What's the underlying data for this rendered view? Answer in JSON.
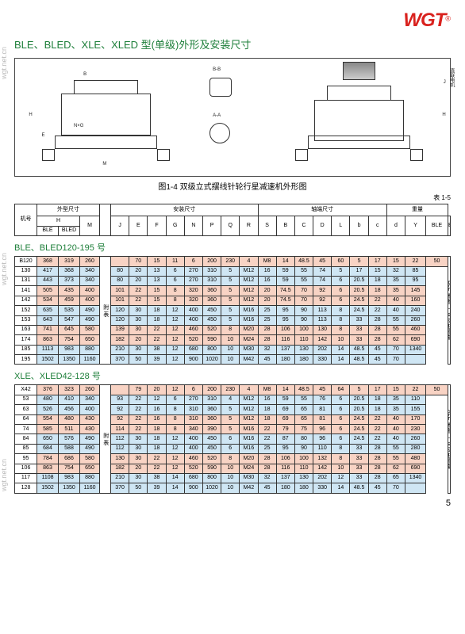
{
  "meta": {
    "logo_text": "WGT",
    "watermark": "wgt.net.cn",
    "title": "BLE、BLED、XLE、XLED 型(单级)外形及安装尺寸",
    "caption": "图1-4  双级立式摆线针轮行星减速机外形图",
    "table_label": "表 1-5",
    "page_number": "5"
  },
  "diagram": {
    "labels": {
      "H": "H",
      "M": "M",
      "E": "E",
      "F": "F",
      "B": "B",
      "J": "J",
      "NxG": "N×G",
      "section_bb": "B-B",
      "section_aa": "A-A",
      "axis_a": "A",
      "axis_b": "B",
      "motor_note": "直联电机"
    }
  },
  "header": {
    "group_outer": "外型尺寸",
    "group_install": "安装尺寸",
    "group_shaft": "轴端尺寸",
    "group_weight": "重量",
    "jihao": "机号",
    "cols": [
      "H",
      "",
      "M",
      "J",
      "E",
      "F",
      "G",
      "N",
      "P",
      "Q",
      "R",
      "S",
      "B",
      "C",
      "D",
      "L",
      "b",
      "c",
      "d",
      "Y",
      "BLE",
      "BLED(约)"
    ],
    "h_sub_left": "BLE",
    "h_sub_right": "BLED"
  },
  "sections": [
    {
      "title": "BLE、BLED120-195 号",
      "right_note_top": "BLE 重量 ＋ 电动机重量",
      "attach": "附 表",
      "rows": [
        {
          "style": "row-peach",
          "cells": [
            "B120",
            "368",
            "319",
            "260",
            "",
            "70",
            "15",
            "11",
            "6",
            "200",
            "230",
            "4",
            "M8",
            "14",
            "48.5",
            "45",
            "60",
            "5",
            "17",
            "15",
            "22",
            "50"
          ]
        },
        {
          "style": "row-blue",
          "cells": [
            "130",
            "417",
            "368",
            "340",
            "",
            "80",
            "20",
            "13",
            "6",
            "270",
            "310",
            "5",
            "M12",
            "16",
            "59",
            "55",
            "74",
            "5",
            "17",
            "15",
            "32",
            "85"
          ]
        },
        {
          "style": "row-blue",
          "cells": [
            "131",
            "443",
            "373",
            "340",
            "",
            "80",
            "20",
            "13",
            "6",
            "270",
            "310",
            "5",
            "M12",
            "16",
            "59",
            "55",
            "74",
            "6",
            "20.5",
            "18",
            "35",
            "95"
          ]
        },
        {
          "style": "row-peach",
          "cells": [
            "141",
            "505",
            "435",
            "400",
            "",
            "101",
            "22",
            "15",
            "8",
            "320",
            "360",
            "5",
            "M12",
            "20",
            "74.5",
            "70",
            "92",
            "6",
            "20.5",
            "18",
            "35",
            "145"
          ]
        },
        {
          "style": "row-peach",
          "cells": [
            "142",
            "534",
            "459",
            "400",
            "",
            "101",
            "22",
            "15",
            "8",
            "320",
            "360",
            "5",
            "M12",
            "20",
            "74.5",
            "70",
            "92",
            "6",
            "24.5",
            "22",
            "40",
            "160"
          ]
        },
        {
          "style": "row-blue",
          "cells": [
            "152",
            "635",
            "535",
            "490",
            "",
            "120",
            "30",
            "18",
            "12",
            "400",
            "450",
            "5",
            "M16",
            "25",
            "95",
            "90",
            "113",
            "8",
            "24.5",
            "22",
            "40",
            "240"
          ]
        },
        {
          "style": "row-blue",
          "cells": [
            "153",
            "643",
            "547",
            "490",
            "",
            "120",
            "30",
            "18",
            "12",
            "400",
            "450",
            "5",
            "M16",
            "25",
            "95",
            "90",
            "113",
            "8",
            "33",
            "28",
            "55",
            "260"
          ]
        },
        {
          "style": "row-peach",
          "cells": [
            "163",
            "741",
            "645",
            "580",
            "",
            "139",
            "30",
            "22",
            "12",
            "460",
            "520",
            "8",
            "M20",
            "28",
            "106",
            "100",
            "130",
            "8",
            "33",
            "28",
            "55",
            "460"
          ]
        },
        {
          "style": "row-peach",
          "cells": [
            "174",
            "863",
            "754",
            "650",
            "",
            "182",
            "20",
            "22",
            "12",
            "520",
            "590",
            "10",
            "M24",
            "28",
            "116",
            "110",
            "142",
            "10",
            "33",
            "28",
            "62",
            "690"
          ]
        },
        {
          "style": "row-blue",
          "cells": [
            "185",
            "1113",
            "983",
            "880",
            "",
            "210",
            "30",
            "38",
            "12",
            "680",
            "800",
            "10",
            "M30",
            "32",
            "137",
            "130",
            "202",
            "14",
            "48.5",
            "45",
            "70",
            "1340"
          ]
        },
        {
          "style": "row-blue",
          "cells": [
            "195",
            "1502",
            "1350",
            "1160",
            "",
            "370",
            "50",
            "39",
            "12",
            "900",
            "1020",
            "10",
            "M42",
            "45",
            "180",
            "180",
            "330",
            "14",
            "48.5",
            "45",
            "70",
            ""
          ]
        }
      ]
    },
    {
      "title": "XLE、XLED42-128 号",
      "right_note_top": "XLE 重量 ＋ 电动机重量",
      "attach": "附 表",
      "rows": [
        {
          "style": "row-peach",
          "cells": [
            "X42",
            "376",
            "323",
            "260",
            "",
            "79",
            "20",
            "12",
            "6",
            "200",
            "230",
            "4",
            "M8",
            "14",
            "48.5",
            "45",
            "64",
            "5",
            "17",
            "15",
            "22",
            "50"
          ]
        },
        {
          "style": "row-blue",
          "cells": [
            "53",
            "480",
            "410",
            "340",
            "",
            "93",
            "22",
            "12",
            "6",
            "270",
            "310",
            "4",
            "M12",
            "16",
            "59",
            "55",
            "76",
            "6",
            "20.5",
            "18",
            "35",
            "110"
          ]
        },
        {
          "style": "row-blue",
          "cells": [
            "63",
            "526",
            "456",
            "400",
            "",
            "92",
            "22",
            "16",
            "8",
            "310",
            "360",
            "5",
            "M12",
            "18",
            "69",
            "65",
            "81",
            "6",
            "20.5",
            "18",
            "35",
            "155"
          ]
        },
        {
          "style": "row-peach",
          "cells": [
            "64",
            "554",
            "480",
            "430",
            "",
            "92",
            "22",
            "16",
            "8",
            "310",
            "360",
            "5",
            "M12",
            "18",
            "69",
            "65",
            "81",
            "6",
            "24.5",
            "22",
            "40",
            "170"
          ]
        },
        {
          "style": "row-peach",
          "cells": [
            "74",
            "585",
            "511",
            "430",
            "",
            "114",
            "22",
            "18",
            "8",
            "340",
            "390",
            "5",
            "M16",
            "22",
            "79",
            "75",
            "96",
            "6",
            "24.5",
            "22",
            "40",
            "230"
          ]
        },
        {
          "style": "row-blue",
          "cells": [
            "84",
            "650",
            "576",
            "490",
            "",
            "112",
            "30",
            "18",
            "12",
            "400",
            "450",
            "6",
            "M16",
            "22",
            "87",
            "80",
            "96",
            "6",
            "24.5",
            "22",
            "40",
            "260"
          ]
        },
        {
          "style": "row-blue",
          "cells": [
            "85",
            "684",
            "588",
            "490",
            "",
            "112",
            "30",
            "18",
            "12",
            "400",
            "450",
            "6",
            "M16",
            "25",
            "95",
            "90",
            "110",
            "8",
            "33",
            "28",
            "55",
            "280"
          ]
        },
        {
          "style": "row-peach",
          "cells": [
            "95",
            "784",
            "686",
            "580",
            "",
            "130",
            "30",
            "22",
            "12",
            "460",
            "520",
            "8",
            "M20",
            "28",
            "106",
            "100",
            "132",
            "8",
            "33",
            "28",
            "55",
            "480"
          ]
        },
        {
          "style": "row-peach",
          "cells": [
            "106",
            "863",
            "754",
            "650",
            "",
            "182",
            "20",
            "22",
            "12",
            "520",
            "590",
            "10",
            "M24",
            "28",
            "116",
            "110",
            "142",
            "10",
            "33",
            "28",
            "62",
            "690"
          ]
        },
        {
          "style": "row-blue",
          "cells": [
            "117",
            "1108",
            "983",
            "880",
            "",
            "210",
            "30",
            "38",
            "14",
            "680",
            "800",
            "10",
            "M30",
            "32",
            "137",
            "130",
            "202",
            "12",
            "33",
            "28",
            "65",
            "1340"
          ]
        },
        {
          "style": "row-blue",
          "cells": [
            "128",
            "1502",
            "1350",
            "1160",
            "",
            "370",
            "50",
            "39",
            "14",
            "900",
            "1020",
            "10",
            "M42",
            "45",
            "180",
            "180",
            "330",
            "14",
            "48.5",
            "45",
            "70",
            ""
          ]
        }
      ]
    }
  ],
  "colors": {
    "blue": "#cfe6f4",
    "peach": "#f8d3c4",
    "green": "#1e7f3a",
    "red": "#d9221e",
    "border": "#333333"
  }
}
